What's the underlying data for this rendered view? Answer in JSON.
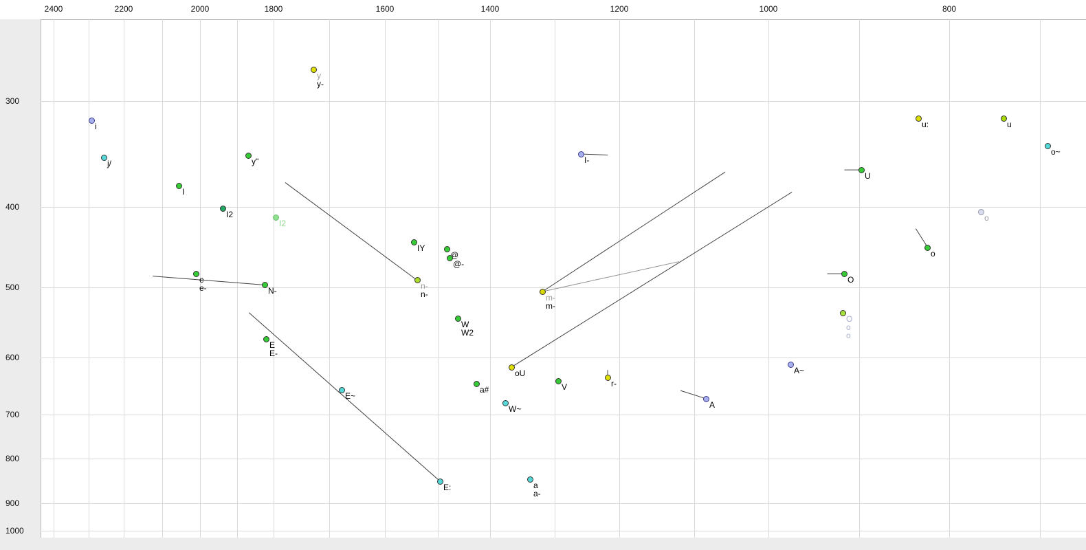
{
  "chart_data": {
    "type": "scatter",
    "title": "",
    "xlabel": "",
    "ylabel": "",
    "x_axis": {
      "ticks": [
        2400,
        2200,
        2000,
        1800,
        1600,
        1400,
        1200,
        1000,
        800
      ],
      "reversed": true,
      "gridline_step": 100,
      "scale": "log-like"
    },
    "y_axis": {
      "ticks": [
        300,
        400,
        500,
        600,
        700,
        800,
        900,
        1000
      ],
      "reversed": true,
      "gridline_step": 100,
      "scale": "log-like"
    },
    "grid": true,
    "legend": false,
    "points": [
      {
        "id": "y",
        "f2": 1728,
        "f1": 270,
        "color": "#e0e000",
        "labels": [
          {
            "text": "y",
            "color": "#9a9a9a"
          },
          {
            "text": "y-",
            "color": "#000000"
          }
        ]
      },
      {
        "id": "i",
        "f2": 2292,
        "f1": 318,
        "color": "#a9b0ef",
        "outline": "#3a3a8c",
        "labels": [
          {
            "text": "i",
            "color": "#000000"
          }
        ]
      },
      {
        "id": "j/",
        "f2": 2257,
        "f1": 353,
        "color": "#54d8d8",
        "labels": [
          {
            "text": "j/",
            "color": "#000000"
          }
        ]
      },
      {
        "id": "y\"",
        "f2": 1869,
        "f1": 351,
        "color": "#35cc35",
        "labels": [
          {
            "text": "y\"",
            "color": "#000000"
          }
        ]
      },
      {
        "id": "I",
        "f2": 2056,
        "f1": 380,
        "color": "#35cc35",
        "labels": [
          {
            "text": "I",
            "color": "#000000"
          }
        ]
      },
      {
        "id": "I2",
        "f2": 1938,
        "f1": 402,
        "color": "#22a862",
        "labels": [
          {
            "text": "I2",
            "color": "#000000"
          }
        ]
      },
      {
        "id": "I2-light",
        "f2": 1796,
        "f1": 413,
        "color": "#8fe08f",
        "outline": "#6cbf6c",
        "labels": [
          {
            "text": "I2",
            "color": "#8fd88f"
          }
        ]
      },
      {
        "id": "IY",
        "f2": 1545,
        "f1": 444,
        "color": "#35cc35",
        "labels": [
          {
            "text": "IY",
            "color": "#000000"
          }
        ]
      },
      {
        "id": "@",
        "f2": 1482,
        "f1": 452,
        "color": "#35cc35",
        "labels": [
          {
            "text": "@",
            "color": "#000000"
          }
        ]
      },
      {
        "id": "@-",
        "f2": 1477,
        "f1": 463,
        "color": "#35cc35",
        "labels": [
          {
            "text": "@-",
            "color": "#000000"
          }
        ]
      },
      {
        "id": "n-",
        "f2": 1539,
        "f1": 491,
        "color": "#aadc28",
        "labels": [
          {
            "text": "n-",
            "color": "#9a9a9a"
          },
          {
            "text": "n-",
            "color": "#000000"
          }
        ]
      },
      {
        "id": "e",
        "f2": 2011,
        "f1": 483,
        "color": "#35cc35",
        "labels": [
          {
            "text": "e",
            "color": "#000000"
          },
          {
            "text": "e-",
            "color": "#000000"
          }
        ]
      },
      {
        "id": "N-",
        "f2": 1824,
        "f1": 497,
        "color": "#35cc35",
        "labels": [
          {
            "text": "N-",
            "color": "#000000"
          }
        ]
      },
      {
        "id": "E",
        "f2": 1821,
        "f1": 574,
        "color": "#35cc35",
        "labels": [
          {
            "text": "E",
            "color": "#000000"
          },
          {
            "text": "E-",
            "color": "#000000"
          }
        ]
      },
      {
        "id": "E~",
        "f2": 1678,
        "f1": 657,
        "color": "#54d8d8",
        "labels": [
          {
            "text": "E~",
            "color": "#000000"
          }
        ]
      },
      {
        "id": "E:",
        "f2": 1495,
        "f1": 851,
        "color": "#54d8d8",
        "labels": [
          {
            "text": "E:",
            "color": "#000000"
          }
        ]
      },
      {
        "id": "W",
        "f2": 1461,
        "f1": 544,
        "color": "#35cc35",
        "labels": [
          {
            "text": "W",
            "color": "#000000"
          },
          {
            "text": "W2",
            "color": "#000000"
          }
        ]
      },
      {
        "id": "oU",
        "f2": 1367,
        "f1": 617,
        "color": "#e0e000",
        "labels": [
          {
            "text": "oU",
            "color": "#000000"
          }
        ]
      },
      {
        "id": "a#",
        "f2": 1426,
        "f1": 646,
        "color": "#35cc35",
        "labels": [
          {
            "text": "a#",
            "color": "#000000"
          }
        ]
      },
      {
        "id": "W~",
        "f2": 1377,
        "f1": 680,
        "color": "#54d8d8",
        "labels": [
          {
            "text": "W~",
            "color": "#000000"
          }
        ]
      },
      {
        "id": "a",
        "f2": 1338,
        "f1": 846,
        "color": "#54d8d8",
        "labels": [
          {
            "text": "a",
            "color": "#000000"
          },
          {
            "text": "a-",
            "color": "#000000"
          }
        ]
      },
      {
        "id": "V",
        "f2": 1295,
        "f1": 641,
        "color": "#35cc35",
        "labels": [
          {
            "text": "V",
            "color": "#000000"
          }
        ]
      },
      {
        "id": "r-",
        "f2": 1218,
        "f1": 635,
        "color": "#e0e000",
        "labels": [
          {
            "text": "r-",
            "color": "#000000"
          }
        ]
      },
      {
        "id": "m-",
        "f2": 1319,
        "f1": 506,
        "color": "#d8d800",
        "labels": [
          {
            "text": "m-",
            "color": "#9a9a9a"
          },
          {
            "text": "m-",
            "color": "#000000"
          }
        ]
      },
      {
        "id": "I-",
        "f2": 1260,
        "f1": 350,
        "color": "#a9b0ef",
        "outline": "#3a3a8c",
        "labels": [
          {
            "text": "I-",
            "color": "#000000"
          }
        ]
      },
      {
        "id": "A~",
        "f2": 976,
        "f1": 612,
        "color": "#a9b0ef",
        "outline": "#3a3a8c",
        "labels": [
          {
            "text": "A~",
            "color": "#000000"
          }
        ]
      },
      {
        "id": "A",
        "f2": 1084,
        "f1": 672,
        "color": "#a9b0ef",
        "outline": "#3a3a8c",
        "labels": [
          {
            "text": "A",
            "color": "#000000"
          }
        ]
      },
      {
        "id": "u:",
        "f2": 834,
        "f1": 316,
        "color": "#dce000",
        "labels": [
          {
            "text": "u:",
            "color": "#000000"
          }
        ]
      },
      {
        "id": "u",
        "f2": 740,
        "f1": 316,
        "color": "#a8d800",
        "labels": [
          {
            "text": "u",
            "color": "#000000"
          }
        ]
      },
      {
        "id": "o~",
        "f2": 691,
        "f1": 342,
        "color": "#54d8d8",
        "labels": [
          {
            "text": "o~",
            "color": "#000000"
          }
        ]
      },
      {
        "id": "U",
        "f2": 897,
        "f1": 365,
        "color": "#35cc35",
        "labels": [
          {
            "text": "U",
            "color": "#000000"
          }
        ]
      },
      {
        "id": "o-pale",
        "f2": 765,
        "f1": 406,
        "color": "#d9dcea",
        "outline": "#9096aa",
        "labels": [
          {
            "text": "o",
            "color": "#9a9aa8"
          }
        ]
      },
      {
        "id": "o",
        "f2": 824,
        "f1": 450,
        "color": "#35cc35",
        "labels": [
          {
            "text": "o",
            "color": "#000000"
          }
        ]
      },
      {
        "id": "O",
        "f2": 916,
        "f1": 483,
        "color": "#35cc35",
        "labels": [
          {
            "text": "O",
            "color": "#000000"
          }
        ]
      },
      {
        "id": "O2",
        "f2": 918,
        "f1": 536,
        "color": "#a8e03c",
        "labels": [
          {
            "text": "O",
            "color": "#a8aed0"
          },
          {
            "text": "o",
            "color": "#a8aed0"
          },
          {
            "text": "o",
            "color": "#a8aed0"
          }
        ]
      }
    ],
    "segments": [
      {
        "f2a": 1779,
        "f1a": 377,
        "f2b": 1539,
        "f1b": 491,
        "color": "#404040",
        "width": 1
      },
      {
        "f2a": 2124,
        "f1a": 486,
        "f2b": 1824,
        "f1b": 497,
        "color": "#404040",
        "width": 1
      },
      {
        "f2a": 1867,
        "f1a": 536,
        "f2b": 1495,
        "f1b": 851,
        "color": "#404040",
        "width": 1
      },
      {
        "f2a": 1260,
        "f1a": 350,
        "f2b": 1218,
        "f1b": 351,
        "color": "#404040",
        "width": 1
      },
      {
        "f2a": 1319,
        "f1a": 506,
        "f2b": 1058,
        "f1b": 367,
        "color": "#404040",
        "width": 1
      },
      {
        "f2a": 1319,
        "f1a": 506,
        "f2b": 1120,
        "f1b": 468,
        "color": "#909090",
        "width": 1
      },
      {
        "f2a": 1367,
        "f1a": 617,
        "f2b": 974,
        "f1b": 386,
        "color": "#404040",
        "width": 1
      },
      {
        "f2a": 916,
        "f1a": 365,
        "f2b": 897,
        "f1b": 365,
        "color": "#404040",
        "width": 1
      },
      {
        "f2a": 935,
        "f1a": 483,
        "f2b": 916,
        "f1b": 483,
        "color": "#404040",
        "width": 1
      },
      {
        "f2a": 837,
        "f1a": 427,
        "f2b": 824,
        "f1b": 450,
        "color": "#404040",
        "width": 1
      },
      {
        "f2a": 1118,
        "f1a": 658,
        "f2b": 1084,
        "f1b": 672,
        "color": "#404040",
        "width": 1
      },
      {
        "f2a": 1218,
        "f1a": 622,
        "f2b": 1218,
        "f1b": 635,
        "color": "#404040",
        "width": 1
      }
    ]
  }
}
